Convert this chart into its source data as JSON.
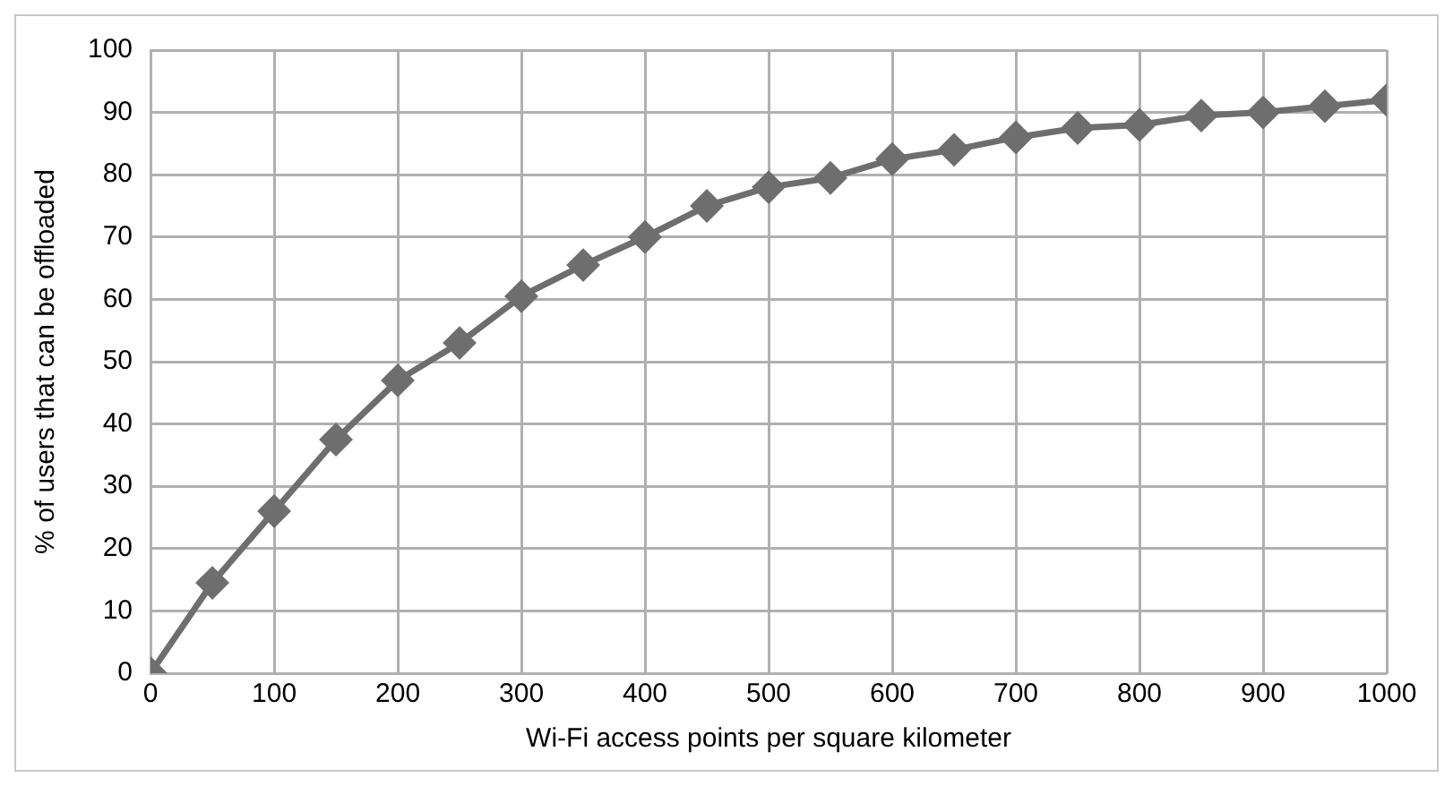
{
  "chart_data": {
    "type": "line",
    "xlabel": "Wi-Fi access points per square kilometer",
    "ylabel": "% of users that can be offloaded",
    "x": [
      0,
      50,
      100,
      150,
      200,
      250,
      300,
      350,
      400,
      450,
      500,
      550,
      600,
      650,
      700,
      750,
      800,
      850,
      900,
      950,
      1000
    ],
    "series": [
      {
        "color": "#6e6e6e",
        "values": [
          0,
          14.5,
          26,
          37.5,
          47,
          53,
          60.5,
          65.5,
          70,
          75,
          78,
          79.5,
          82.5,
          84,
          86,
          87.5,
          88,
          89.5,
          90,
          91,
          92
        ]
      }
    ],
    "xlim": [
      0,
      1000
    ],
    "xticks": [
      0,
      100,
      200,
      300,
      400,
      500,
      600,
      700,
      800,
      900,
      1000
    ],
    "ylim": [
      0,
      100
    ],
    "yticks": [
      0,
      10,
      20,
      30,
      40,
      50,
      60,
      70,
      80,
      90,
      100
    ],
    "grid": true,
    "legend": false,
    "marker": "diamond",
    "line_style": "solid"
  }
}
